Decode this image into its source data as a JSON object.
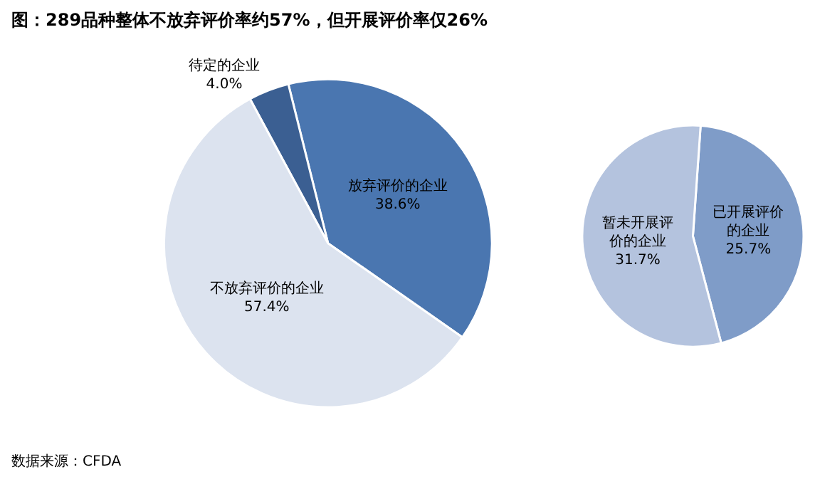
{
  "chart_data": [
    {
      "type": "pie",
      "title": "图：289品种整体不放弃评价率约57%，但开展评价率仅26%",
      "categories": [
        "放弃评价的企业",
        "待定的企业",
        "不放弃评价的企业"
      ],
      "values": [
        38.6,
        4.0,
        57.4
      ],
      "value_labels": [
        "38.6%",
        "4.0%",
        "57.4%"
      ],
      "colors": [
        "#4a76b0",
        "#3b5f92",
        "#dce3ef"
      ],
      "legend": false,
      "annotations": [
        "数据来源：CFDA"
      ]
    },
    {
      "type": "pie",
      "categories": [
        "已开展评价的企业",
        "暂未开展评价的企业"
      ],
      "values": [
        25.7,
        31.7
      ],
      "value_labels": [
        "25.7%",
        "31.7%"
      ],
      "colors": [
        "#7f9cc8",
        "#b4c3de"
      ],
      "legend": false
    }
  ]
}
